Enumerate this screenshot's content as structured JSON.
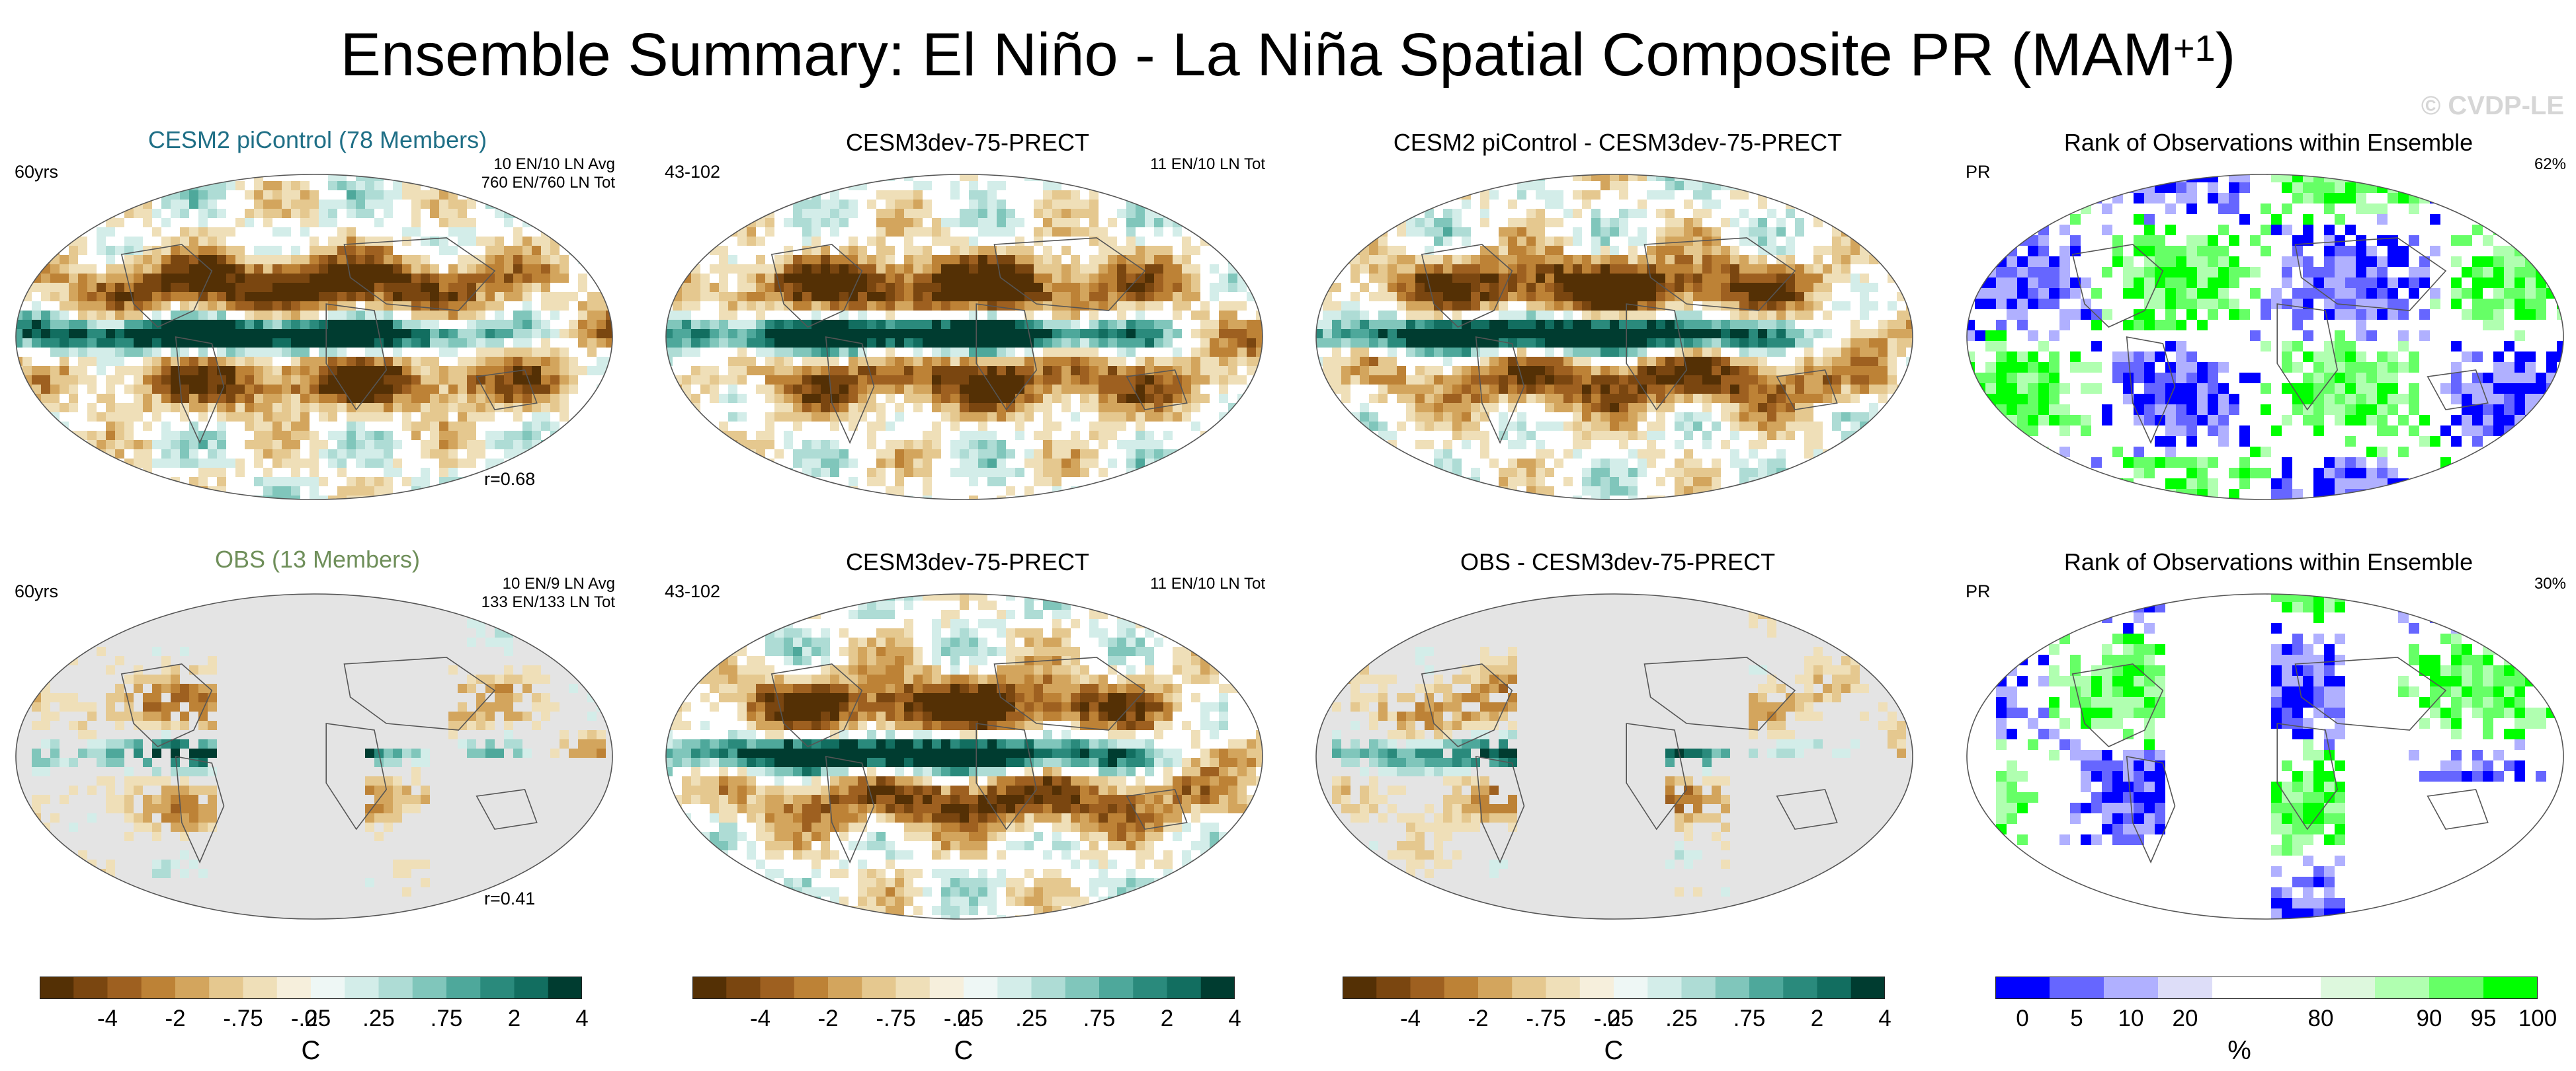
{
  "figure": {
    "title_main": "Ensemble Summary: El Niño - La Niña Spatial Composite PR (MAM",
    "title_sup": "+1",
    "title_end": ")",
    "watermark": "© CVDP-LE"
  },
  "panels": [
    {
      "title": "CESM2 piControl (78 Members)",
      "left": "60yrs",
      "right1": "10 EN/10 LN Avg",
      "right2": "760 EN/760 LN Tot",
      "bottom": "r=0.68",
      "scheme": "div"
    },
    {
      "title": "CESM3dev-75-PRECT",
      "left": "43-102",
      "right1": "11 EN/10 LN Tot",
      "right2": "",
      "bottom": "",
      "scheme": "div"
    },
    {
      "title": "CESM2 piControl - CESM3dev-75-PRECT",
      "left": "",
      "right1": "",
      "right2": "",
      "bottom": "",
      "scheme": "div"
    },
    {
      "title": "Rank of Observations within Ensemble",
      "left": "PR",
      "right1": "62%",
      "right2": "",
      "bottom": "",
      "scheme": "rank"
    },
    {
      "title": "OBS (13 Members)",
      "left": "60yrs",
      "right1": "10 EN/9 LN Avg",
      "right2": "133 EN/133 LN Tot",
      "bottom": "r=0.41",
      "scheme": "div-obs"
    },
    {
      "title": "CESM3dev-75-PRECT",
      "left": "43-102",
      "right1": "11 EN/10 LN Tot",
      "right2": "",
      "bottom": "",
      "scheme": "div"
    },
    {
      "title": "OBS - CESM3dev-75-PRECT",
      "left": "",
      "right1": "",
      "right2": "",
      "bottom": "",
      "scheme": "div-obs"
    },
    {
      "title": "Rank of Observations within Ensemble",
      "left": "PR",
      "right1": "30%",
      "right2": "",
      "bottom": "",
      "scheme": "rank-obs"
    }
  ],
  "colorbars": [
    {
      "unit": "C",
      "labels": [
        "-4",
        "-2",
        "-.75",
        "-.25",
        "0",
        ".25",
        ".75",
        "2",
        "4"
      ],
      "colors": [
        "#543005",
        "#7a4610",
        "#9e6020",
        "#bd8236",
        "#d3a55d",
        "#e5c88f",
        "#efdfb8",
        "#f6efdc",
        "#eef7f5",
        "#d3ede9",
        "#aedcd5",
        "#80c6bb",
        "#4ea89b",
        "#2a8a7c",
        "#126e60",
        "#003c30"
      ]
    },
    {
      "unit": "C",
      "labels": [
        "-4",
        "-2",
        "-.75",
        "-.25",
        "0",
        ".25",
        ".75",
        "2",
        "4"
      ],
      "colors": [
        "#543005",
        "#7a4610",
        "#9e6020",
        "#bd8236",
        "#d3a55d",
        "#e5c88f",
        "#efdfb8",
        "#f6efdc",
        "#eef7f5",
        "#d3ede9",
        "#aedcd5",
        "#80c6bb",
        "#4ea89b",
        "#2a8a7c",
        "#126e60",
        "#003c30"
      ]
    },
    {
      "unit": "C",
      "labels": [
        "-4",
        "-2",
        "-.75",
        "-.25",
        "0",
        ".25",
        ".75",
        "2",
        "4"
      ],
      "colors": [
        "#543005",
        "#7a4610",
        "#9e6020",
        "#bd8236",
        "#d3a55d",
        "#e5c88f",
        "#efdfb8",
        "#f6efdc",
        "#eef7f5",
        "#d3ede9",
        "#aedcd5",
        "#80c6bb",
        "#4ea89b",
        "#2a8a7c",
        "#126e60",
        "#003c30"
      ]
    },
    {
      "unit": "%",
      "labels": [
        "0",
        "5",
        "10",
        "20",
        "80",
        "90",
        "95",
        "100"
      ],
      "colors": [
        "#0000ff",
        "#6666ff",
        "#b0b0ff",
        "#ddddf8",
        "#ffffff",
        "#ffffff",
        "#ddf8dd",
        "#b0ffb0",
        "#66ff66",
        "#00ff00"
      ]
    }
  ]
}
